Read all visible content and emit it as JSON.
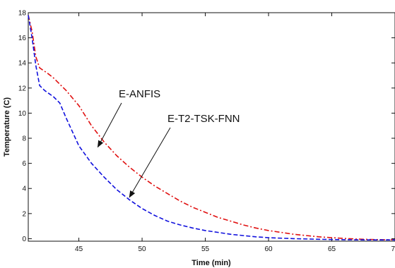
{
  "chart_data": {
    "type": "line",
    "title": "",
    "xlabel": "Time (min)",
    "ylabel": "Temperature (C)",
    "xlim": [
      41,
      70
    ],
    "ylim": [
      -0.2,
      18
    ],
    "x_ticks": [
      45,
      50,
      55,
      60,
      65,
      70
    ],
    "x_tick_labels": [
      "45",
      "50",
      "55",
      "60",
      "65",
      "70"
    ],
    "y_ticks": [
      0,
      2,
      4,
      6,
      8,
      10,
      12,
      14,
      16,
      18
    ],
    "y_tick_labels": [
      "0",
      "2",
      "4",
      "6",
      "8",
      "10",
      "12",
      "14",
      "16",
      "18"
    ],
    "grid": false,
    "series": [
      {
        "name": "E-ANFIS",
        "color": "#e01010",
        "style": "dash-dot",
        "points": [
          [
            41.0,
            17.8
          ],
          [
            41.3,
            16.5
          ],
          [
            41.6,
            14.5
          ],
          [
            41.9,
            13.6
          ],
          [
            42.5,
            13.2
          ],
          [
            43.0,
            12.8
          ],
          [
            44.0,
            11.8
          ],
          [
            45.0,
            10.6
          ],
          [
            46.0,
            9.0
          ],
          [
            47.0,
            7.7
          ],
          [
            48.0,
            6.6
          ],
          [
            49.0,
            5.7
          ],
          [
            50.0,
            4.9
          ],
          [
            51.0,
            4.2
          ],
          [
            52.0,
            3.6
          ],
          [
            53.0,
            3.0
          ],
          [
            54.0,
            2.5
          ],
          [
            55.0,
            2.1
          ],
          [
            56.0,
            1.7
          ],
          [
            57.0,
            1.4
          ],
          [
            58.0,
            1.1
          ],
          [
            59.0,
            0.85
          ],
          [
            60.0,
            0.65
          ],
          [
            61.0,
            0.5
          ],
          [
            62.0,
            0.35
          ],
          [
            63.0,
            0.25
          ],
          [
            64.0,
            0.15
          ],
          [
            65.0,
            0.08
          ],
          [
            66.0,
            0.02
          ],
          [
            67.0,
            -0.03
          ],
          [
            68.0,
            -0.06
          ],
          [
            69.0,
            -0.08
          ],
          [
            70.0,
            -0.08
          ]
        ]
      },
      {
        "name": "E-T2-TSK-FNN",
        "color": "#1010dd",
        "style": "dashed",
        "points": [
          [
            41.0,
            17.8
          ],
          [
            41.3,
            16.0
          ],
          [
            41.6,
            13.8
          ],
          [
            41.9,
            12.2
          ],
          [
            42.3,
            11.8
          ],
          [
            43.0,
            11.3
          ],
          [
            43.5,
            10.8
          ],
          [
            44.0,
            9.6
          ],
          [
            45.0,
            7.4
          ],
          [
            46.0,
            6.0
          ],
          [
            47.0,
            4.9
          ],
          [
            48.0,
            3.9
          ],
          [
            49.0,
            3.1
          ],
          [
            50.0,
            2.4
          ],
          [
            51.0,
            1.85
          ],
          [
            52.0,
            1.4
          ],
          [
            53.0,
            1.1
          ],
          [
            54.0,
            0.85
          ],
          [
            55.0,
            0.65
          ],
          [
            56.0,
            0.5
          ],
          [
            57.0,
            0.35
          ],
          [
            58.0,
            0.25
          ],
          [
            59.0,
            0.15
          ],
          [
            60.0,
            0.08
          ],
          [
            62.0,
            0.0
          ],
          [
            64.0,
            -0.05
          ],
          [
            66.0,
            -0.08
          ],
          [
            68.0,
            -0.1
          ],
          [
            70.0,
            -0.1
          ]
        ]
      }
    ],
    "annotations": [
      {
        "text": "E-ANFIS",
        "arrow_to": [
          46.5,
          7.3
        ]
      },
      {
        "text": "E-T2-TSK-FNN",
        "arrow_to": [
          49.0,
          3.3
        ]
      }
    ]
  }
}
